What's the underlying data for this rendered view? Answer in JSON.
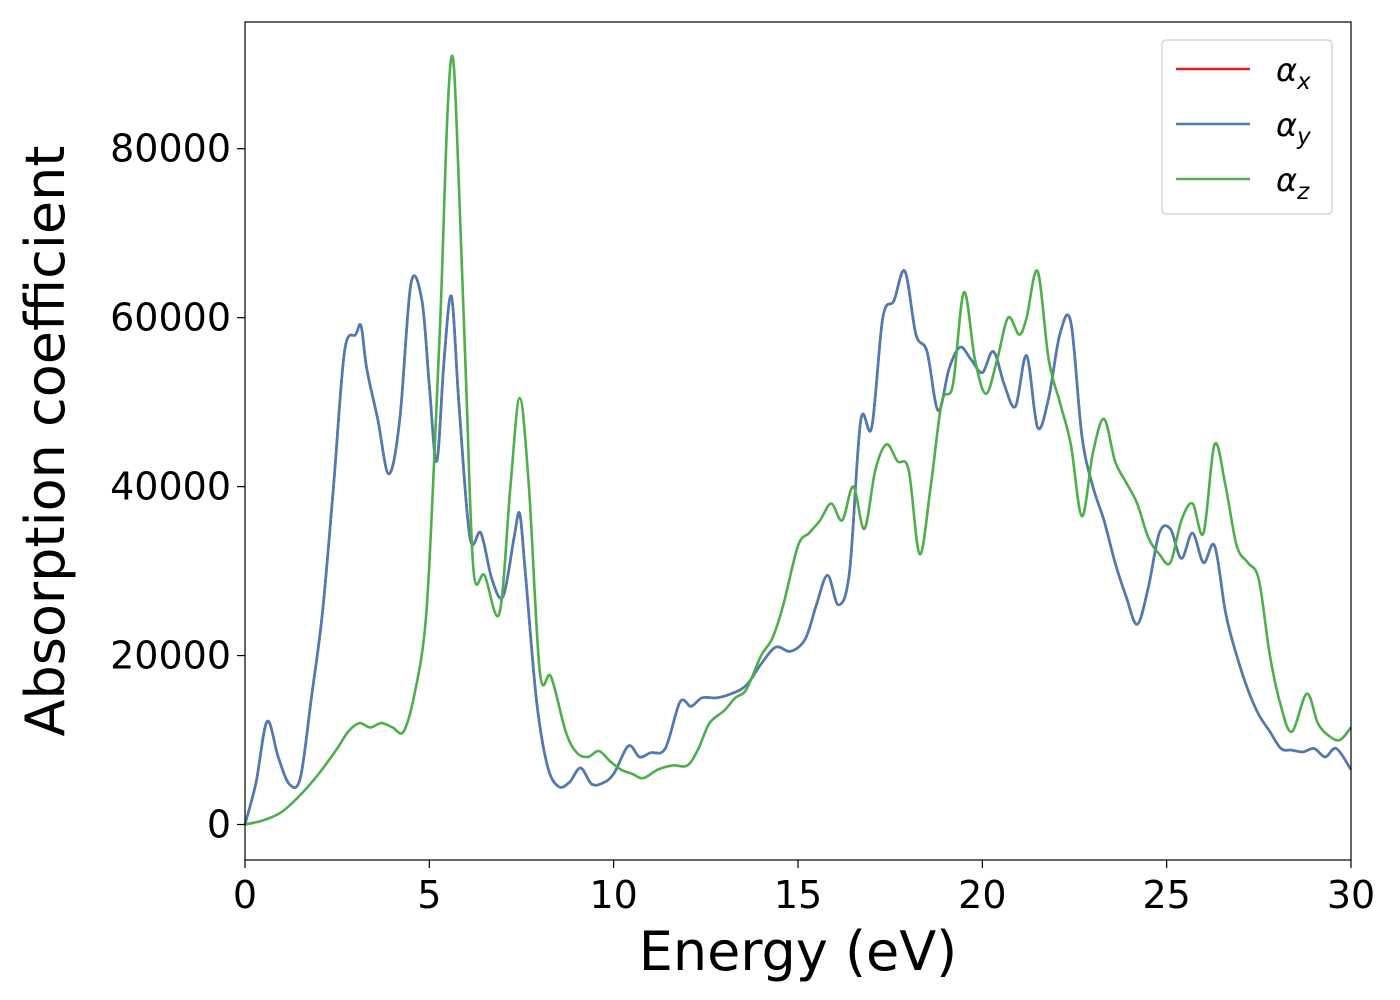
{
  "chart_data": {
    "type": "line",
    "xlabel": "Energy (eV)",
    "ylabel": "Absorption coefficient",
    "xlim": [
      0,
      30
    ],
    "ylim": [
      -4200,
      95000
    ],
    "xticks": [
      0,
      5,
      10,
      15,
      20,
      25,
      30
    ],
    "xtick_labels": [
      "0",
      "5",
      "10",
      "15",
      "20",
      "25",
      "30"
    ],
    "yticks": [
      0,
      20000,
      40000,
      60000,
      80000
    ],
    "ytick_labels": [
      "0",
      "20000",
      "40000",
      "60000",
      "80000"
    ],
    "grid": false,
    "legend_position": "top-right",
    "series": [
      {
        "name": "α",
        "subscript": "x",
        "color": "#e41a1c",
        "x": [
          0,
          0.3,
          0.6,
          0.9,
          1.2,
          1.5,
          1.8,
          2.1,
          2.4,
          2.7,
          3.0,
          3.15,
          3.3,
          3.6,
          3.9,
          4.2,
          4.5,
          4.8,
          5.0,
          5.2,
          5.4,
          5.6,
          5.8,
          6.1,
          6.4,
          6.7,
          7.0,
          7.3,
          7.45,
          7.6,
          7.9,
          8.2,
          8.5,
          8.8,
          9.1,
          9.4,
          9.7,
          10.0,
          10.4,
          10.7,
          11.0,
          11.4,
          11.8,
          12.1,
          12.4,
          12.8,
          13.2,
          13.6,
          14.0,
          14.4,
          14.8,
          15.2,
          15.5,
          15.8,
          16.1,
          16.4,
          16.7,
          17.0,
          17.3,
          17.6,
          17.9,
          18.2,
          18.5,
          18.8,
          19.1,
          19.4,
          19.7,
          20.0,
          20.3,
          20.6,
          20.9,
          21.2,
          21.5,
          21.8,
          22.1,
          22.4,
          22.7,
          23.0,
          23.3,
          23.6,
          23.9,
          24.2,
          24.5,
          24.8,
          25.1,
          25.4,
          25.7,
          26.0,
          26.3,
          26.6,
          26.9,
          27.2,
          27.5,
          27.8,
          28.1,
          28.4,
          28.7,
          29.0,
          29.3,
          29.6,
          30.0
        ],
        "y": [
          0,
          5000,
          12200,
          8000,
          4800,
          5500,
          15000,
          25000,
          40000,
          56000,
          58000,
          59000,
          54000,
          48000,
          41500,
          48000,
          64000,
          62000,
          52000,
          43000,
          55000,
          62500,
          50000,
          34000,
          34500,
          29000,
          27000,
          34000,
          36800,
          30000,
          15000,
          7000,
          4500,
          5000,
          6700,
          4800,
          4900,
          6000,
          9300,
          8000,
          8500,
          9000,
          14500,
          14000,
          15000,
          15000,
          15500,
          16500,
          19000,
          21000,
          20500,
          22000,
          26000,
          29500,
          26000,
          30000,
          47800,
          47000,
          60000,
          62000,
          65500,
          58000,
          56000,
          49000,
          54000,
          56500,
          55000,
          53500,
          56000,
          52000,
          49500,
          55500,
          47000,
          50500,
          58000,
          59500,
          46000,
          40000,
          36000,
          31000,
          27000,
          23700,
          28000,
          34500,
          35000,
          31500,
          34500,
          31000,
          33000,
          25000,
          20000,
          16000,
          13000,
          11000,
          9000,
          8800,
          8600,
          9000,
          8000,
          9000,
          6500
        ]
      },
      {
        "name": "α",
        "subscript": "y",
        "color": "#4a7db5",
        "x": [
          0,
          0.3,
          0.6,
          0.9,
          1.2,
          1.5,
          1.8,
          2.1,
          2.4,
          2.7,
          3.0,
          3.15,
          3.3,
          3.6,
          3.9,
          4.2,
          4.5,
          4.8,
          5.0,
          5.2,
          5.4,
          5.6,
          5.8,
          6.1,
          6.4,
          6.7,
          7.0,
          7.3,
          7.45,
          7.6,
          7.9,
          8.2,
          8.5,
          8.8,
          9.1,
          9.4,
          9.7,
          10.0,
          10.4,
          10.7,
          11.0,
          11.4,
          11.8,
          12.1,
          12.4,
          12.8,
          13.2,
          13.6,
          14.0,
          14.4,
          14.8,
          15.2,
          15.5,
          15.8,
          16.1,
          16.4,
          16.7,
          17.0,
          17.3,
          17.6,
          17.9,
          18.2,
          18.5,
          18.8,
          19.1,
          19.4,
          19.7,
          20.0,
          20.3,
          20.6,
          20.9,
          21.2,
          21.5,
          21.8,
          22.1,
          22.4,
          22.7,
          23.0,
          23.3,
          23.6,
          23.9,
          24.2,
          24.5,
          24.8,
          25.1,
          25.4,
          25.7,
          26.0,
          26.3,
          26.6,
          26.9,
          27.2,
          27.5,
          27.8,
          28.1,
          28.4,
          28.7,
          29.0,
          29.3,
          29.6,
          30.0
        ],
        "y": [
          0,
          5000,
          12200,
          8000,
          4800,
          5500,
          15000,
          25000,
          40000,
          56000,
          58000,
          59000,
          54000,
          48000,
          41500,
          48000,
          64000,
          62000,
          52000,
          43000,
          55000,
          62500,
          50000,
          34000,
          34500,
          29000,
          27000,
          34000,
          36800,
          30000,
          15000,
          7000,
          4500,
          5000,
          6700,
          4800,
          4900,
          6000,
          9300,
          8000,
          8500,
          9000,
          14500,
          14000,
          15000,
          15000,
          15500,
          16500,
          19000,
          21000,
          20500,
          22000,
          26000,
          29500,
          26000,
          30000,
          47800,
          47000,
          60000,
          62000,
          65500,
          58000,
          56000,
          49000,
          54000,
          56500,
          55000,
          53500,
          56000,
          52000,
          49500,
          55500,
          47000,
          50500,
          58000,
          59500,
          46000,
          40000,
          36000,
          31000,
          27000,
          23700,
          28000,
          34500,
          35000,
          31500,
          34500,
          31000,
          33000,
          25000,
          20000,
          16000,
          13000,
          11000,
          9000,
          8800,
          8600,
          9000,
          8000,
          9000,
          6500
        ]
      },
      {
        "name": "α",
        "subscript": "z",
        "color": "#4daf4a",
        "x": [
          0,
          0.5,
          1.0,
          1.5,
          2.0,
          2.5,
          2.8,
          3.1,
          3.4,
          3.7,
          4.0,
          4.3,
          4.6,
          4.9,
          5.1,
          5.3,
          5.5,
          5.65,
          5.8,
          6.0,
          6.2,
          6.5,
          6.9,
          7.2,
          7.45,
          7.7,
          8.0,
          8.3,
          8.7,
          9.0,
          9.3,
          9.6,
          9.9,
          10.2,
          10.5,
          10.8,
          11.2,
          11.6,
          12.0,
          12.3,
          12.6,
          13.0,
          13.3,
          13.6,
          14.0,
          14.3,
          14.6,
          15.0,
          15.3,
          15.6,
          15.9,
          16.2,
          16.5,
          16.8,
          17.1,
          17.4,
          17.7,
          18.0,
          18.3,
          18.6,
          18.9,
          19.2,
          19.5,
          19.8,
          20.1,
          20.4,
          20.7,
          21.0,
          21.2,
          21.5,
          21.8,
          22.1,
          22.4,
          22.7,
          23.0,
          23.3,
          23.6,
          23.9,
          24.2,
          24.5,
          24.8,
          25.1,
          25.4,
          25.7,
          26.0,
          26.3,
          26.6,
          26.9,
          27.2,
          27.5,
          27.8,
          28.1,
          28.4,
          28.8,
          29.1,
          29.4,
          29.7,
          30.0
        ],
        "y": [
          0,
          500,
          1500,
          3500,
          6000,
          9000,
          11000,
          12000,
          11500,
          12000,
          11500,
          11000,
          15500,
          24000,
          40000,
          60000,
          85000,
          90500,
          76000,
          52000,
          30000,
          29500,
          25000,
          40000,
          50500,
          40000,
          18000,
          17500,
          11000,
          8500,
          8000,
          8700,
          7500,
          6500,
          6000,
          5500,
          6500,
          7000,
          7000,
          9000,
          12000,
          13500,
          15000,
          16000,
          20000,
          22000,
          26000,
          33000,
          34500,
          36000,
          38000,
          36000,
          40000,
          35000,
          42000,
          45000,
          43000,
          42000,
          32000,
          40000,
          50000,
          52000,
          63000,
          55000,
          51000,
          55000,
          60000,
          58000,
          60000,
          65500,
          55000,
          50000,
          45000,
          36500,
          44000,
          48000,
          43000,
          40500,
          38000,
          34000,
          32000,
          31000,
          36000,
          38000,
          34500,
          45000,
          40000,
          33000,
          31000,
          29000,
          20000,
          14000,
          11000,
          15500,
          12000,
          10500,
          10000,
          11500
        ]
      }
    ]
  }
}
